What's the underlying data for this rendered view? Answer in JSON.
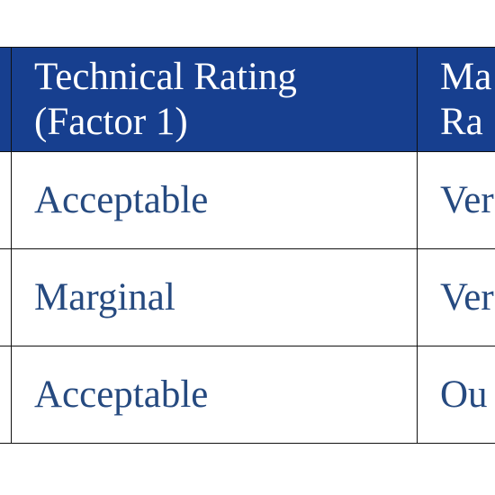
{
  "table": {
    "header": [
      "",
      "Technical Rating (Factor 1)",
      "Ma\nRa"
    ],
    "rows": [
      [
        "",
        "Acceptable",
        "Ver"
      ],
      [
        "",
        "Marginal",
        "Ver"
      ],
      [
        "",
        "Acceptable",
        "Ou"
      ]
    ]
  }
}
